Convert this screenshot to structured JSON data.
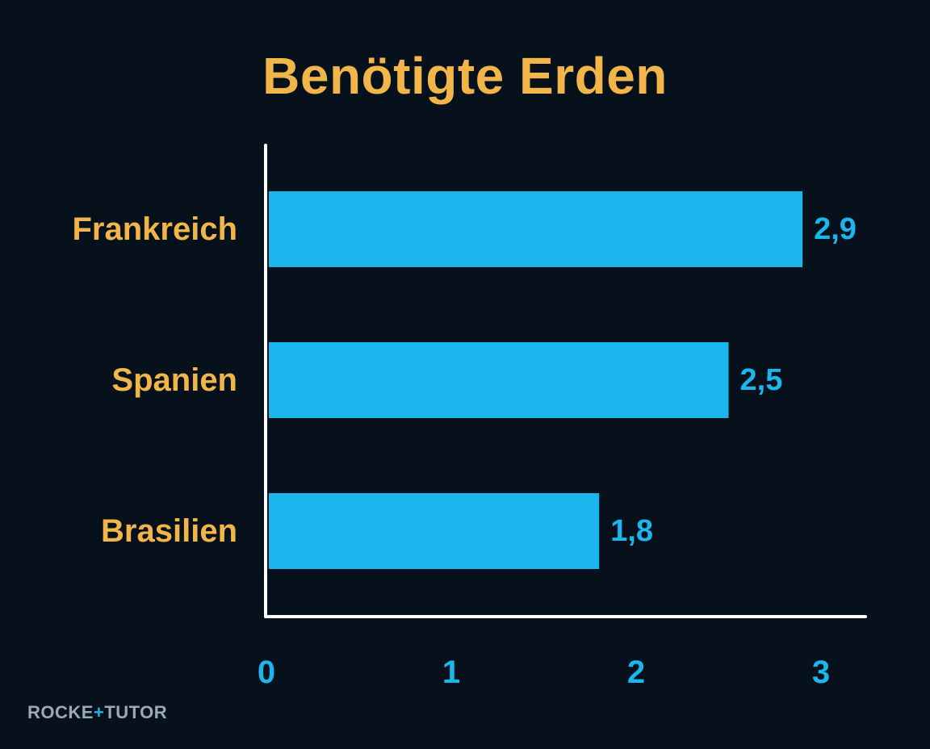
{
  "chart_data": {
    "type": "bar",
    "orientation": "horizontal",
    "title": "Benötigte Erden",
    "categories": [
      "Frankreich",
      "Spanien",
      "Brasilien"
    ],
    "values": [
      2.9,
      2.5,
      1.8
    ],
    "value_labels": [
      "2,9",
      "2,5",
      "1,8"
    ],
    "x_ticks": [
      "0",
      "1",
      "2",
      "3"
    ],
    "xlim": [
      0,
      3
    ],
    "xlabel": "",
    "ylabel": "",
    "grid": false,
    "legend": "none"
  },
  "colors": {
    "background": "#07111b",
    "bar": "#1cb6ef",
    "category_label": "#f2b54a",
    "title": "#f2b54a",
    "value_label": "#1cb6ef",
    "axis": "#ffffff"
  },
  "watermark": {
    "text_left": "ROCKE",
    "text_plus": "+",
    "text_right": "TUTOR"
  }
}
